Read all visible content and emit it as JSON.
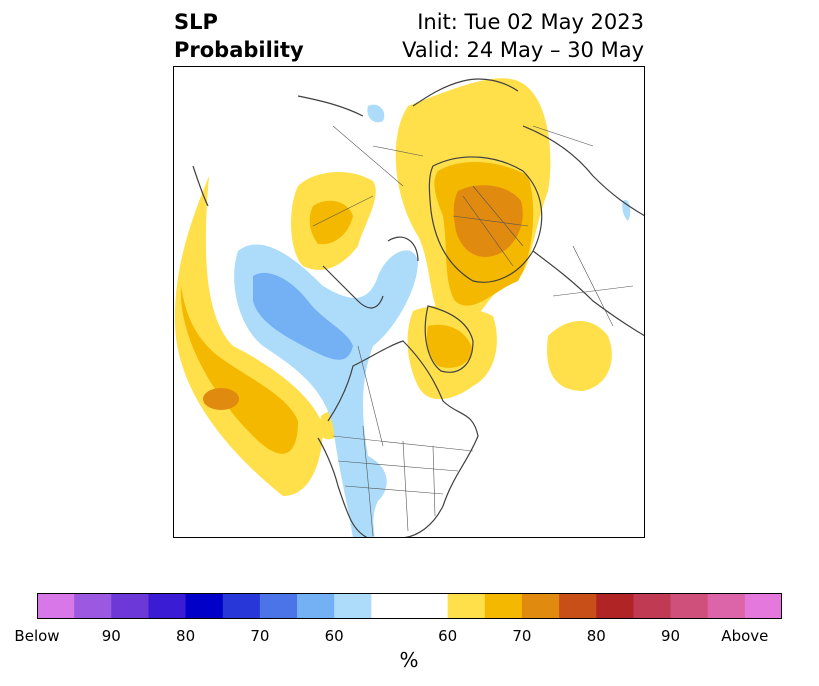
{
  "header": {
    "variable": "SLP",
    "product": "Probability",
    "init": "Init: Tue 02 May 2023",
    "valid": "Valid: 24 May – 30 May"
  },
  "colorbar": {
    "unit": "%",
    "tick_labels": [
      "Below",
      "90",
      "80",
      "70",
      "60",
      "60",
      "70",
      "80",
      "90",
      "Above"
    ],
    "colors": [
      "#d878e8",
      "#9b58e0",
      "#6c38d8",
      "#3a1cd4",
      "#0000c8",
      "#2838d8",
      "#4a74e8",
      "#74b0f4",
      "#acdcfa",
      "#ffffff",
      "#ffe04a",
      "#f4b800",
      "#e08a10",
      "#c85018",
      "#b02426",
      "#c03a54",
      "#d0507c",
      "#dc64a8",
      "#e478dc"
    ]
  },
  "map": {
    "region": "Northern Hemisphere polar stereographic",
    "below_colors": {
      "60": "#acdcfa",
      "70": "#74b0f4",
      "80": "#4a74e8"
    },
    "above_colors": {
      "60": "#ffe04a",
      "70": "#f4b800",
      "80": "#e08a10"
    }
  }
}
